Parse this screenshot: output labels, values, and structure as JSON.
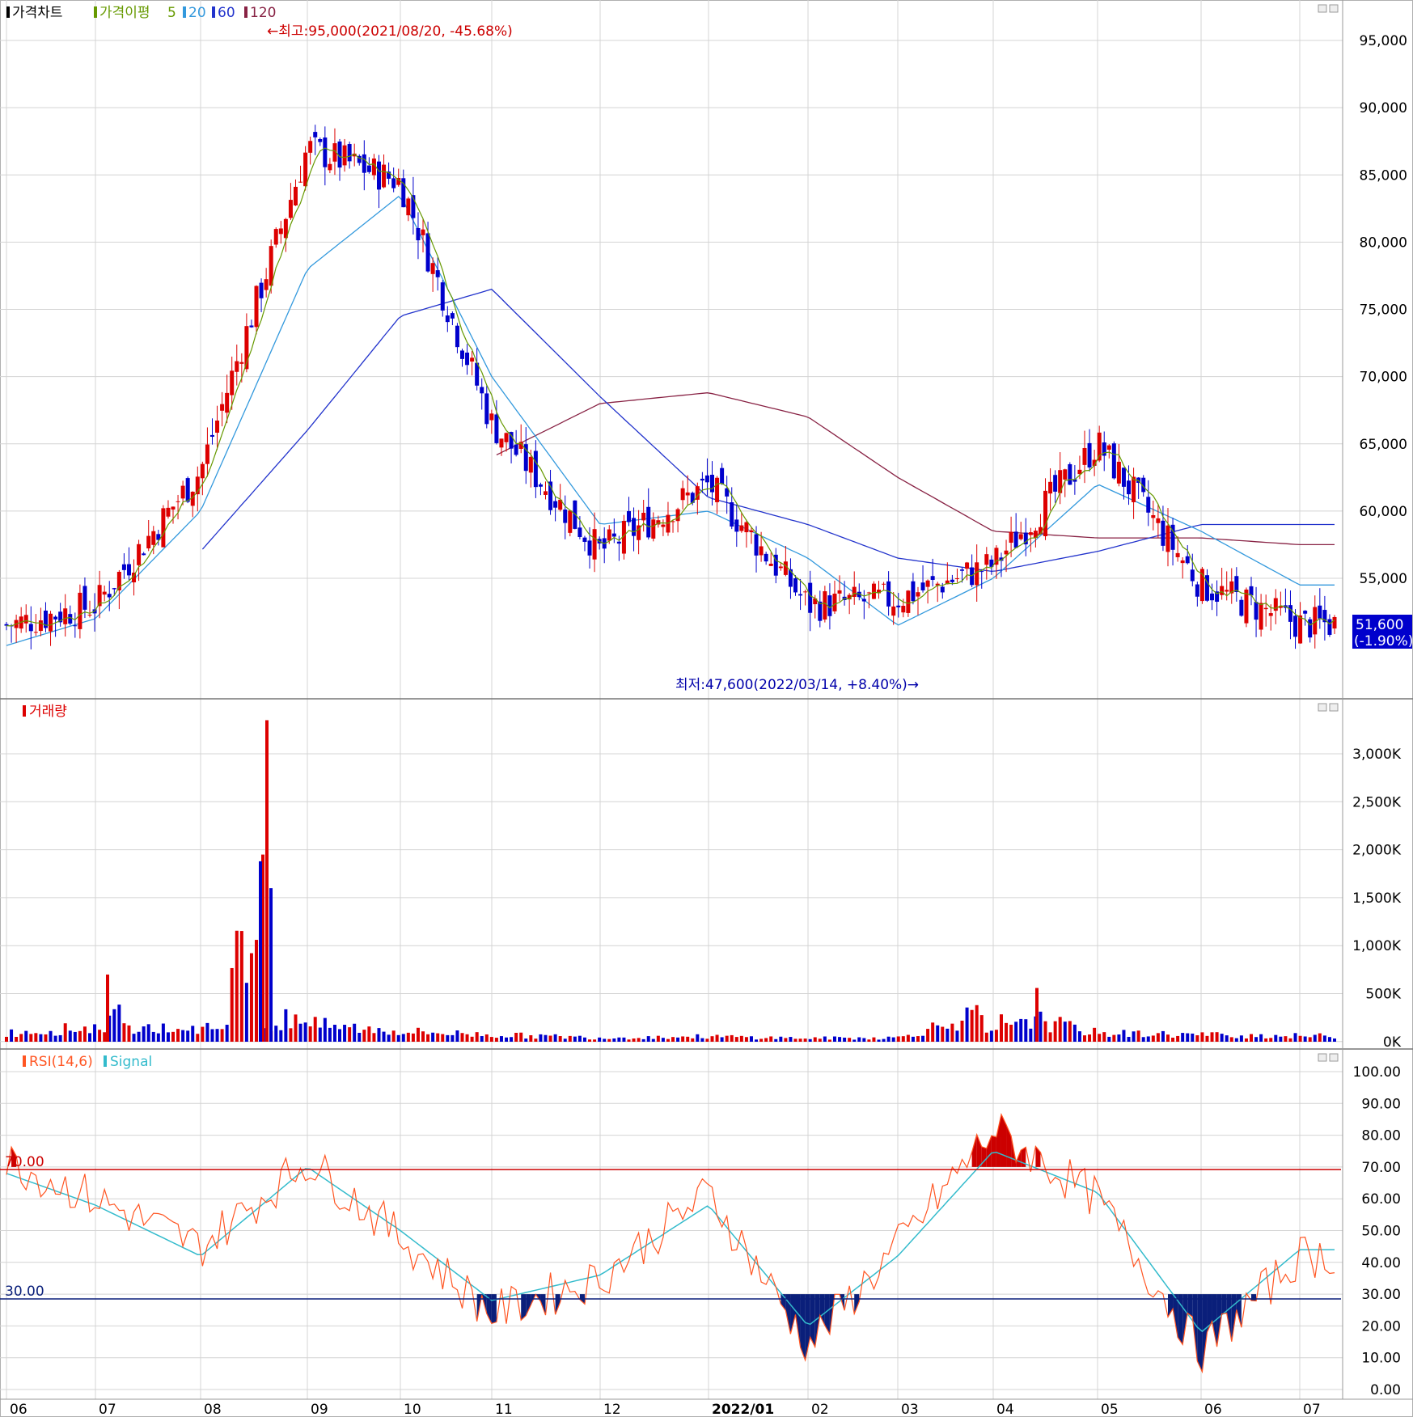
{
  "colors": {
    "up": "#dd0000",
    "down": "#0000cc",
    "ma5": "#669900",
    "ma20": "#3399dd",
    "ma60": "#2233cc",
    "ma120": "#882244",
    "rsi": "#ff5522",
    "signal": "#33bbcc",
    "overbought": "#cc0000",
    "oversold": "#0a1f7a",
    "grid": "#d4d4d4",
    "price_box_bg": "#0000cc",
    "annot": "#cc0000",
    "annot_low": "#0000aa"
  },
  "price_panel": {
    "legend": {
      "chart": "가격차트",
      "ma_title": "가격이평",
      "ma5": "5",
      "ma20": "20",
      "ma60": "60",
      "ma120": "120"
    },
    "high_annotation": "←최고:95,000(2021/08/20, -45.68%)",
    "low_annotation": "최저:47,600(2022/03/14, +8.40%)→",
    "current_price": "51,600",
    "current_change": "(-1.90%)",
    "y_ticks": [
      "95,000",
      "90,000",
      "85,000",
      "80,000",
      "75,000",
      "70,000",
      "65,000",
      "60,000",
      "55,000"
    ]
  },
  "volume_panel": {
    "legend": "거래량",
    "y_ticks": [
      "3,000K",
      "2,500K",
      "2,000K",
      "1,500K",
      "1,000K",
      "500K",
      "0K"
    ]
  },
  "rsi_panel": {
    "legend_rsi": "RSI(14,6)",
    "legend_signal": "Signal",
    "upper_label": "70.00",
    "lower_label": "30.00",
    "y_ticks": [
      "100.00",
      "90.00",
      "80.00",
      "70.00",
      "60.00",
      "50.00",
      "40.00",
      "30.00",
      "20.00",
      "10.00",
      "0.00"
    ]
  },
  "x_axis": {
    "months": [
      "06",
      "07",
      "08",
      "09",
      "10",
      "11",
      "12",
      "2022/01",
      "02",
      "03",
      "04",
      "05",
      "06",
      "07"
    ]
  },
  "chart_data": [
    {
      "type": "candlestick",
      "panel": "price",
      "ylim": [
        45000,
        97000
      ],
      "x": [
        "2021-06",
        "2021-07",
        "2021-08",
        "2021-09",
        "2021-10",
        "2021-11",
        "2021-12",
        "2022-01",
        "2022-02",
        "2022-03",
        "2022-04",
        "2022-05",
        "2022-06",
        "2022-07"
      ],
      "series": [
        {
          "name": "Close",
          "values": [
            51500,
            53000,
            63000,
            87000,
            84500,
            66500,
            57000,
            62000,
            53000,
            53500,
            56000,
            65000,
            54500,
            51600
          ]
        },
        {
          "name": "5",
          "values": [
            51200,
            52800,
            63500,
            86500,
            85000,
            67000,
            57500,
            61000,
            53500,
            53000,
            57000,
            64500,
            55500,
            52000
          ]
        },
        {
          "name": "20",
          "values": [
            50000,
            52000,
            60000,
            78000,
            83500,
            70000,
            59000,
            60000,
            56500,
            51500,
            55000,
            62000,
            58500,
            54500
          ]
        },
        {
          "name": "60",
          "values": [
            null,
            null,
            57000,
            66000,
            74500,
            76500,
            68500,
            61000,
            59000,
            56500,
            55500,
            57000,
            59000,
            59000
          ]
        },
        {
          "name": "120",
          "values": [
            null,
            null,
            null,
            null,
            null,
            64000,
            68000,
            68800,
            67000,
            62500,
            58500,
            58000,
            58000,
            57500
          ]
        }
      ],
      "highest": {
        "value": 95000,
        "date": "2021/08/20"
      },
      "lowest": {
        "value": 47600,
        "date": "2022/03/14"
      },
      "last": {
        "value": 51600,
        "change_pct": -1.9
      }
    },
    {
      "type": "bar",
      "panel": "volume",
      "ylim": [
        0,
        3400000
      ],
      "x": [
        "2021-06",
        "2021-07",
        "2021-08",
        "2021-09",
        "2021-10",
        "2021-11",
        "2021-12",
        "2022-01",
        "2022-02",
        "2022-03",
        "2022-04",
        "2022-05",
        "2022-06",
        "2022-07"
      ],
      "series": [
        {
          "name": "거래량",
          "values": [
            150000,
            250000,
            3350000,
            300000,
            180000,
            120000,
            70000,
            90000,
            60000,
            70000,
            540000,
            150000,
            120000,
            100000
          ]
        }
      ]
    },
    {
      "type": "line",
      "panel": "rsi",
      "ylim": [
        0,
        100
      ],
      "x": [
        "2021-06",
        "2021-07",
        "2021-08",
        "2021-09",
        "2021-10",
        "2021-11",
        "2021-12",
        "2022-01",
        "2022-02",
        "2022-03",
        "2022-04",
        "2022-05",
        "2022-06",
        "2022-07"
      ],
      "series": [
        {
          "name": "RSI(14,6)",
          "values": [
            72,
            60,
            45,
            72,
            48,
            24,
            35,
            62,
            14,
            45,
            82,
            60,
            12,
            42
          ]
        },
        {
          "name": "Signal",
          "values": [
            68,
            58,
            42,
            70,
            50,
            28,
            36,
            58,
            20,
            42,
            75,
            62,
            18,
            44
          ]
        }
      ],
      "reference_lines": [
        70,
        30
      ]
    }
  ]
}
